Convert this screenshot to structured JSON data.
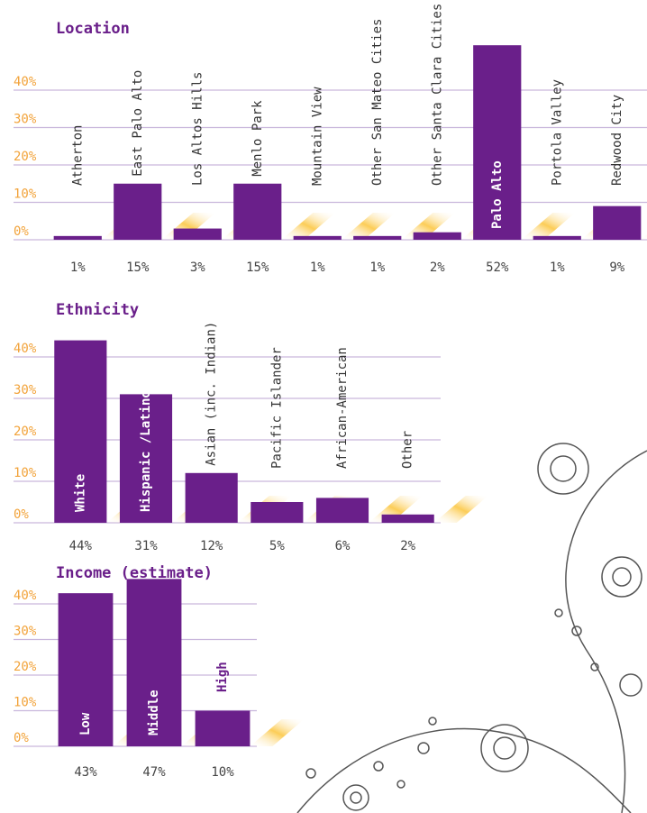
{
  "chart_data": [
    {
      "type": "bar",
      "title": "Location",
      "categories": [
        "Atherton",
        "East Palo Alto",
        "Los Altos Hills",
        "Menlo Park",
        "Mountain View",
        "Other San Mateo Cities",
        "Other Santa Clara Cities",
        "Palo Alto",
        "Portola Valley",
        "Redwood City"
      ],
      "values": [
        1,
        15,
        3,
        15,
        1,
        1,
        2,
        52,
        1,
        9
      ],
      "value_labels": [
        "1%",
        "15%",
        "3%",
        "15%",
        "1%",
        "1%",
        "2%",
        "52%",
        "1%",
        "9%"
      ],
      "color": "#6a1f8a",
      "ylim": [
        0,
        40
      ],
      "yticks": [
        {
          "value": 0,
          "label": "0%"
        },
        {
          "value": 10,
          "label": "10%"
        },
        {
          "value": 20,
          "label": "20%"
        },
        {
          "value": 30,
          "label": "30%"
        },
        {
          "value": 40,
          "label": "40%"
        }
      ],
      "grid": true
    },
    {
      "type": "bar",
      "title": "Ethnicity",
      "categories": [
        "White",
        "Hispanic /Latino",
        "Asian (inc. Indian)",
        "Pacific Islander",
        "African-American",
        "Other"
      ],
      "values": [
        44,
        31,
        12,
        5,
        6,
        2
      ],
      "value_labels": [
        "44%",
        "31%",
        "12%",
        "5%",
        "6%",
        "2%"
      ],
      "color": "#6a1f8a",
      "ylim": [
        0,
        40
      ],
      "yticks": [
        {
          "value": 0,
          "label": "0%"
        },
        {
          "value": 10,
          "label": "10%"
        },
        {
          "value": 20,
          "label": "20%"
        },
        {
          "value": 30,
          "label": "30%"
        },
        {
          "value": 40,
          "label": "40%"
        }
      ],
      "grid": true
    },
    {
      "type": "bar",
      "title": "Income (estimate)",
      "categories": [
        "Low",
        "Middle",
        "High"
      ],
      "values": [
        43,
        47,
        10
      ],
      "value_labels": [
        "43%",
        "47%",
        "10%"
      ],
      "color": "#6a1f8a",
      "ylim": [
        0,
        40
      ],
      "yticks": [
        {
          "value": 0,
          "label": "0%"
        },
        {
          "value": 10,
          "label": "10%"
        },
        {
          "value": 20,
          "label": "20%"
        },
        {
          "value": 30,
          "label": "30%"
        },
        {
          "value": 40,
          "label": "40%"
        }
      ],
      "grid": true
    }
  ]
}
